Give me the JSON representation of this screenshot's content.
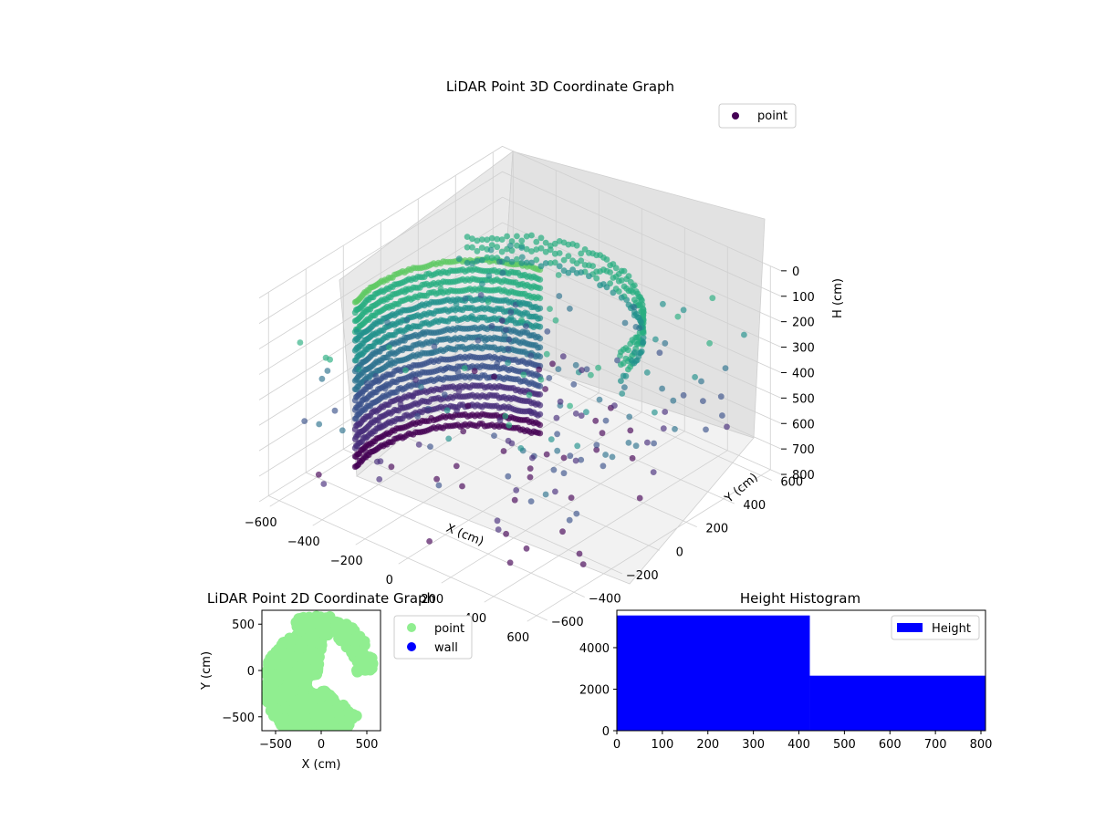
{
  "chart_data": [
    {
      "type": "scatter",
      "title": "LiDAR Point 3D Coordinate Graph",
      "xlabel": "X (cm)",
      "ylabel": "Y (cm)",
      "zlabel": "H (cm)",
      "x_ticks": [
        -600,
        -400,
        -200,
        0,
        200,
        400,
        600
      ],
      "y_ticks": [
        -600,
        -400,
        -200,
        0,
        200,
        400,
        600
      ],
      "z_ticks": [
        0,
        100,
        200,
        300,
        400,
        500,
        600,
        700,
        800
      ],
      "xlim": [
        -650,
        650
      ],
      "ylim": [
        -650,
        650
      ],
      "zlim": [
        0,
        800
      ],
      "z_inverted": true,
      "legend": {
        "position": "top-right",
        "entries": [
          {
            "label": "point",
            "color": "#440154"
          }
        ]
      },
      "colormap": "viridis",
      "grid": true
    },
    {
      "type": "scatter",
      "title": "LiDAR Point 2D Coordinate Graph",
      "xlabel": "X (cm)",
      "ylabel": "Y (cm)",
      "x_ticks": [
        -500,
        0,
        500
      ],
      "y_ticks": [
        -500,
        0,
        500
      ],
      "xlim": [
        -650,
        650
      ],
      "ylim": [
        -650,
        650
      ],
      "legend": {
        "position": "outside-right",
        "entries": [
          {
            "label": "point",
            "color": "#90ee90"
          },
          {
            "label": "wall",
            "color": "#0000ff"
          }
        ]
      },
      "series": [
        {
          "name": "point",
          "color": "#90ee90"
        },
        {
          "name": "wall",
          "color": "#0000ff"
        }
      ]
    },
    {
      "type": "bar",
      "title": "Height Histogram",
      "x_ticks": [
        0,
        100,
        200,
        300,
        400,
        500,
        600,
        700,
        800
      ],
      "y_ticks": [
        0,
        2000,
        4000
      ],
      "xlim": [
        0,
        810
      ],
      "ylim": [
        0,
        5800
      ],
      "bins": [
        {
          "start": 0,
          "end": 424,
          "count": 5550
        },
        {
          "start": 424,
          "end": 810,
          "count": 2650
        }
      ],
      "series": [
        {
          "name": "Height",
          "color": "#0000ff"
        }
      ],
      "legend": {
        "position": "top-right",
        "entries": [
          {
            "label": "Height",
            "color": "#0000ff"
          }
        ]
      }
    }
  ]
}
